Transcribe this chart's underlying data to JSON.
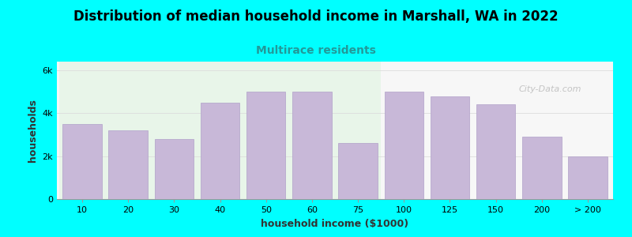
{
  "title": "Distribution of median household income in Marshall, WA in 2022",
  "subtitle": "Multirace residents",
  "xlabel": "household income ($1000)",
  "ylabel": "households",
  "background_color": "#00FFFF",
  "plot_bg_left": "#e8f5e9",
  "plot_bg_right": "#f7f7f7",
  "bar_color": "#c8b8d8",
  "bar_edge_color": "#b0a0c8",
  "categories": [
    "10",
    "20",
    "30",
    "40",
    "50",
    "60",
    "75",
    "100",
    "125",
    "150",
    "200",
    "> 200"
  ],
  "values": [
    3500,
    3200,
    2800,
    4500,
    5000,
    5000,
    2600,
    5000,
    4800,
    4400,
    2900,
    2000
  ],
  "green_split_index": 6.5,
  "ylim": [
    0,
    6400
  ],
  "yticks": [
    0,
    2000,
    4000,
    6000
  ],
  "ytick_labels": [
    "0",
    "2k",
    "4k",
    "6k"
  ],
  "title_fontsize": 12,
  "subtitle_fontsize": 10,
  "subtitle_color": "#229999",
  "axis_label_fontsize": 9,
  "tick_fontsize": 8,
  "watermark": "City-Data.com",
  "watermark_color": "#bbbbbb"
}
